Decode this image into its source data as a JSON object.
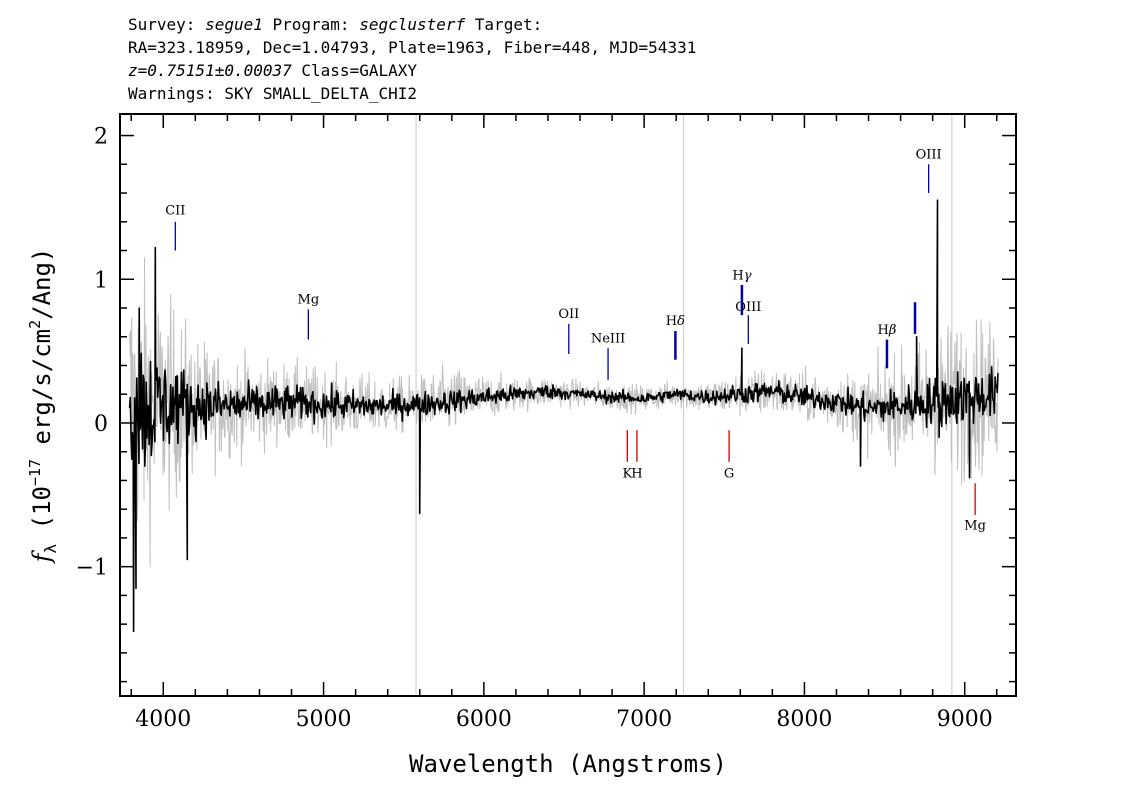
{
  "header": {
    "line1": {
      "survey_label": "Survey: ",
      "survey": "segue1",
      "program_label": " Program: ",
      "program": "segclusterf",
      "target_label": " Target:"
    },
    "line2": "RA=323.18959, Dec=1.04793, Plate=1963, Fiber=448, MJD=54331",
    "line3": {
      "z": "z=0.75151±0.00037",
      "class": " Class=GALAXY"
    },
    "line4": "Warnings: SKY SMALL_DELTA_CHI2"
  },
  "chart_data": {
    "type": "line",
    "xlabel": "Wavelength (Angstroms)",
    "ylabel": "f_λ (10^-17 erg/s/cm^2/Ang)",
    "ylabel_parts": {
      "f": "f",
      "sub": "λ",
      "a": " (10",
      "exp1": "−17",
      "b": " erg/s/cm",
      "exp2": "2",
      "c": "/Ang)"
    },
    "xlim": [
      3730,
      9320
    ],
    "ylim": [
      -1.9,
      2.15
    ],
    "xticks": [
      4000,
      5000,
      6000,
      7000,
      8000,
      9000
    ],
    "xtick_labels": [
      "4000",
      "5000",
      "6000",
      "7000",
      "8000",
      "9000"
    ],
    "yticks": [
      -1,
      0,
      1,
      2
    ],
    "ytick_labels": [
      "−1",
      "0",
      "1",
      "2"
    ],
    "vertical_reference_lines": [
      5577,
      7246,
      8920
    ],
    "series": [
      {
        "role": "error",
        "color": "#c0c0c0",
        "x": [
          3800,
          3900,
          4000,
          4100,
          4200,
          4400,
          4600,
          4800,
          5000,
          5200,
          5400,
          5600,
          5800,
          6000,
          6200,
          6400,
          6600,
          6800,
          7000,
          7200,
          7400,
          7600,
          7800,
          8000,
          8200,
          8400,
          8600,
          8800,
          9000,
          9200
        ],
        "amp": [
          1.35,
          1.15,
          0.95,
          0.8,
          0.6,
          0.45,
          0.4,
          0.35,
          0.32,
          0.28,
          0.25,
          0.25,
          0.3,
          0.2,
          0.15,
          0.14,
          0.12,
          0.12,
          0.12,
          0.12,
          0.15,
          0.2,
          0.22,
          0.22,
          0.25,
          0.35,
          0.45,
          0.6,
          0.75,
          0.6
        ]
      },
      {
        "role": "flux",
        "color": "#000000",
        "x": [
          3800,
          3900,
          4000,
          4100,
          4200,
          4400,
          4600,
          4800,
          5000,
          5200,
          5400,
          5600,
          5800,
          6000,
          6200,
          6400,
          6600,
          6800,
          7000,
          7200,
          7400,
          7600,
          7800,
          8000,
          8200,
          8400,
          8600,
          8800,
          9000,
          9200
        ],
        "y": [
          0.1,
          0.12,
          0.12,
          0.13,
          0.12,
          0.12,
          0.13,
          0.14,
          0.13,
          0.12,
          0.12,
          0.13,
          0.15,
          0.18,
          0.2,
          0.22,
          0.2,
          0.18,
          0.17,
          0.2,
          0.18,
          0.2,
          0.22,
          0.18,
          0.15,
          0.1,
          0.12,
          0.15,
          0.18,
          0.2
        ],
        "amp": [
          0.75,
          0.55,
          0.42,
          0.32,
          0.25,
          0.18,
          0.16,
          0.14,
          0.13,
          0.12,
          0.1,
          0.1,
          0.1,
          0.08,
          0.07,
          0.06,
          0.05,
          0.05,
          0.05,
          0.05,
          0.06,
          0.08,
          0.09,
          0.09,
          0.1,
          0.12,
          0.15,
          0.2,
          0.25,
          0.2
        ],
        "features": [
          {
            "x": 3815,
            "y": -1.45
          },
          {
            "x": 3830,
            "y": -1.15
          },
          {
            "x": 3850,
            "y": 0.8
          },
          {
            "x": 3950,
            "y": 1.22
          },
          {
            "x": 4150,
            "y": -0.95
          },
          {
            "x": 5600,
            "y": -0.63
          },
          {
            "x": 7610,
            "y": 0.52
          },
          {
            "x": 8350,
            "y": -0.3
          },
          {
            "x": 8700,
            "y": 0.6
          },
          {
            "x": 8830,
            "y": 1.55
          },
          {
            "x": 8840,
            "y": -0.1
          },
          {
            "x": 9030,
            "y": -0.38
          }
        ]
      }
    ],
    "emission_lines": [
      {
        "label": "CII",
        "x": 4075,
        "color": "#0000aa",
        "y_bottom": 1.2,
        "y_top": 1.4,
        "label_y": 1.45,
        "greek": false
      },
      {
        "label": "Mg",
        "x": 4905,
        "color": "#0000aa",
        "y_bottom": 0.58,
        "y_top": 0.79,
        "label_y": 0.83,
        "greek": false
      },
      {
        "label": "OII",
        "x": 6530,
        "color": "#0000aa",
        "y_bottom": 0.48,
        "y_top": 0.69,
        "label_y": 0.73,
        "greek": false
      },
      {
        "label": "NeIII",
        "x": 6775,
        "color": "#0000aa",
        "y_bottom": 0.3,
        "y_top": 0.52,
        "label_y": 0.56,
        "greek": false
      },
      {
        "label": "H",
        "x": 7195,
        "color": "#0000aa",
        "y_bottom": 0.44,
        "y_top": 0.64,
        "label_y": 0.68,
        "greek": true,
        "sym": "δ"
      },
      {
        "label": "H",
        "x": 7610,
        "color": "#0000aa",
        "y_bottom": 0.75,
        "y_top": 0.96,
        "label_y": 1.0,
        "greek": true,
        "sym": "γ"
      },
      {
        "label": "OIII",
        "x": 7650,
        "color": "#0000aa",
        "y_bottom": 0.55,
        "y_top": 0.75,
        "label_y": 0.78,
        "greek": false
      },
      {
        "label": "H",
        "x": 8515,
        "color": "#0000aa",
        "y_bottom": 0.38,
        "y_top": 0.58,
        "label_y": 0.62,
        "greek": true,
        "sym": "β"
      },
      {
        "label": "",
        "x": 8690,
        "color": "#0000aa",
        "y_bottom": 0.62,
        "y_top": 0.84,
        "label_y": 0.0,
        "greek": false
      },
      {
        "label": "OIII",
        "x": 8775,
        "color": "#0000aa",
        "y_bottom": 1.6,
        "y_top": 1.8,
        "label_y": 1.84,
        "greek": false
      }
    ],
    "absorption_lines": [
      {
        "label": "K",
        "x": 6895,
        "color": "#cc0000",
        "y_top": -0.05,
        "y_bottom": -0.27,
        "label_y": -0.38
      },
      {
        "label": "H",
        "x": 6955,
        "color": "#cc0000",
        "y_top": -0.05,
        "y_bottom": -0.27,
        "label_y": -0.38
      },
      {
        "label": "G",
        "x": 7530,
        "color": "#cc0000",
        "y_top": -0.05,
        "y_bottom": -0.27,
        "label_y": -0.38
      },
      {
        "label": "Mg",
        "x": 9065,
        "color": "#cc0000",
        "y_top": -0.42,
        "y_bottom": -0.64,
        "label_y": -0.74
      }
    ]
  }
}
